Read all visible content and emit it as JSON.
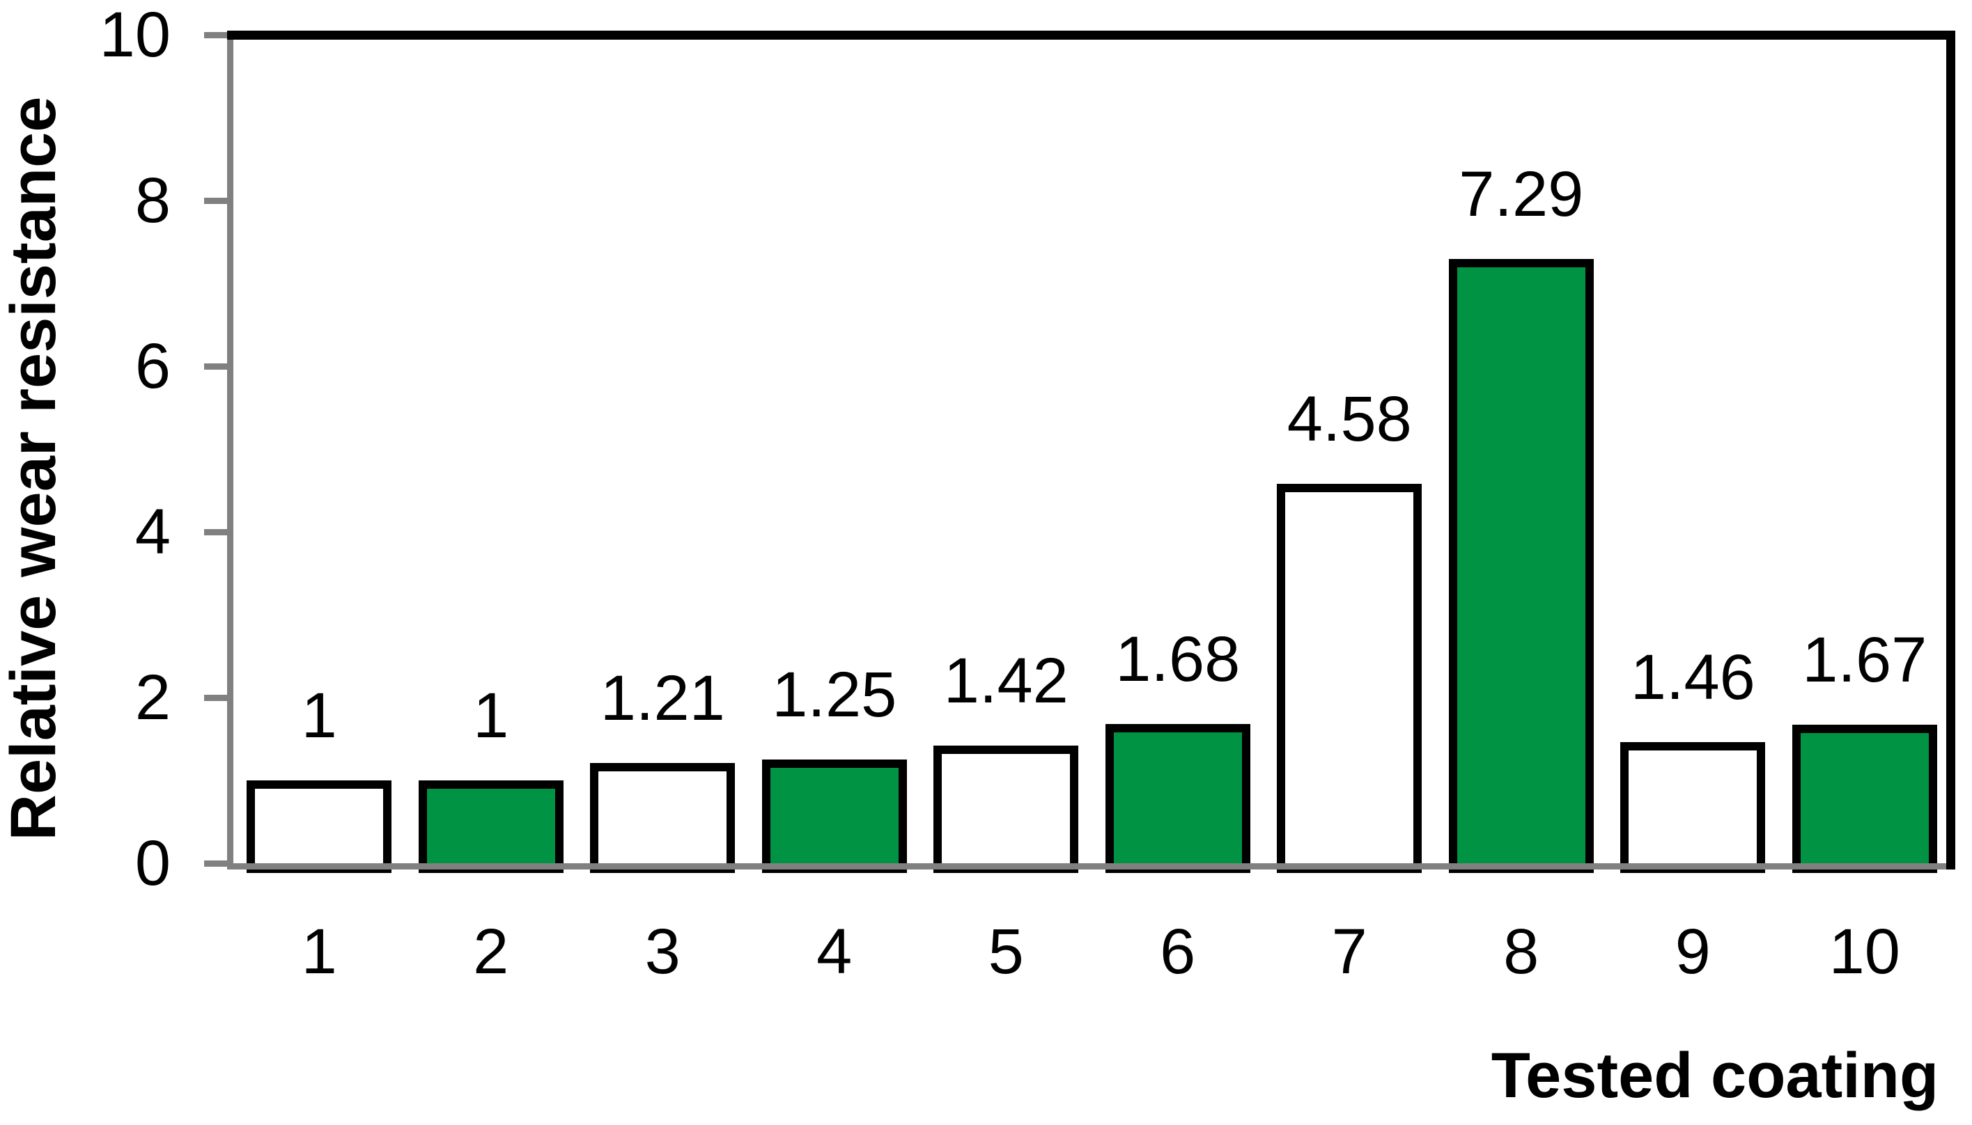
{
  "chart_data": {
    "type": "bar",
    "title": "",
    "xlabel": "Tested coating",
    "ylabel": "Relative wear resistance",
    "categories": [
      "1",
      "2",
      "3",
      "4",
      "5",
      "6",
      "7",
      "8",
      "9",
      "10"
    ],
    "values": [
      1,
      1,
      1.21,
      1.25,
      1.42,
      1.68,
      4.58,
      7.29,
      1.46,
      1.67
    ],
    "value_labels": [
      "1",
      "1",
      "1.21",
      "1.25",
      "1.42",
      "1.68",
      "4.58",
      "7.29",
      "1.46",
      "1.67"
    ],
    "fill_pattern": [
      "white",
      "green",
      "white",
      "green",
      "white",
      "green",
      "white",
      "green",
      "white",
      "green"
    ],
    "ylim": [
      0,
      10
    ],
    "yticks": [
      0,
      2,
      4,
      6,
      8,
      10
    ],
    "grid": false,
    "legend": "none",
    "colors": {
      "green_fill": "#009344",
      "white_fill": "#ffffff",
      "bar_border": "#000000",
      "axis_line": "#808080",
      "plot_border": "#000000",
      "text": "#000000"
    }
  }
}
